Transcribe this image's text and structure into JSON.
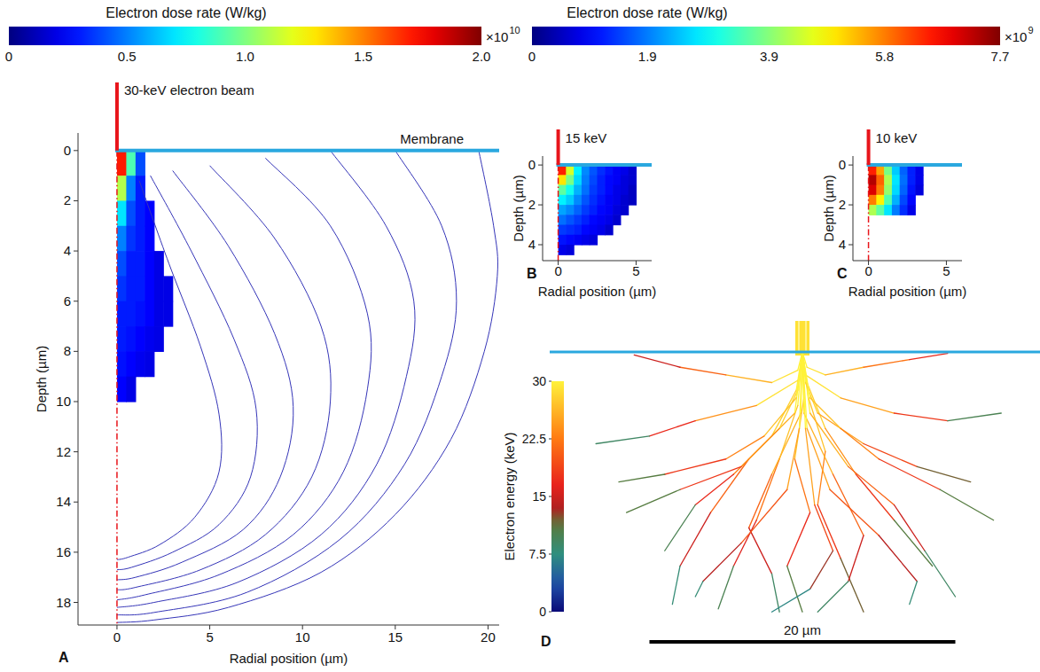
{
  "chart_data": [
    {
      "type": "heatmap",
      "panel_label": "A",
      "beam_label": "30-keV electron beam",
      "annotation": "Membrane",
      "x_label": "Radial position (µm)",
      "y_label": "Depth (µm)",
      "xlim": [
        -2.1,
        20.6
      ],
      "ylim": [
        18.9,
        -0.7
      ],
      "xticks": [
        0,
        5,
        10,
        15,
        20
      ],
      "yticks": [
        0,
        2,
        4,
        6,
        8,
        10,
        12,
        14,
        16,
        18
      ],
      "colorbar": {
        "label": "Electron dose rate (W/kg)",
        "range": [
          0,
          2
        ],
        "ticks": [
          0,
          0.5,
          {
            "value": 1,
            "label": "1.0"
          },
          1.5,
          {
            "value": 2,
            "label": "2.0"
          }
        ],
        "multiplier": {
          "base": "×10",
          "exponent": "10"
        }
      },
      "cells": {
        "x": [
          0.25,
          0.75,
          1.25,
          1.75,
          2.25,
          2.75
        ],
        "y": [
          0.5,
          1.5,
          2.5,
          3.5,
          4.5,
          5.5,
          6.5,
          7.5,
          8.5,
          9.5
        ],
        "values": [
          [
            1.7,
            0.9,
            0.4,
            null,
            null,
            null
          ],
          [
            1.1,
            0.5,
            0.3,
            null,
            null,
            null
          ],
          [
            0.7,
            0.4,
            0.3,
            0.25,
            null,
            null
          ],
          [
            0.5,
            0.35,
            0.3,
            0.25,
            null,
            null
          ],
          [
            0.4,
            0.3,
            0.3,
            0.25,
            0.2,
            null
          ],
          [
            0.35,
            0.3,
            0.3,
            0.25,
            0.2,
            0.2
          ],
          [
            0.3,
            0.3,
            0.28,
            0.25,
            0.2,
            0.2
          ],
          [
            0.3,
            0.28,
            0.25,
            0.22,
            0.2,
            null
          ],
          [
            0.28,
            0.25,
            0.22,
            0.2,
            null,
            null
          ],
          [
            0.25,
            0.2,
            null,
            null,
            null,
            null
          ]
        ]
      },
      "contours": [
        {
          "x": [
            19.5,
            20.3,
            20.5,
            19.8,
            18,
            15,
            11,
            6,
            2,
            0
          ],
          "y": [
            0,
            3,
            5,
            8,
            11.5,
            14.5,
            16.8,
            18.2,
            18.7,
            18.8
          ]
        },
        {
          "x": [
            15,
            17.5,
            18.3,
            17.5,
            15.5,
            12,
            7,
            2,
            0
          ],
          "y": [
            0,
            3,
            6,
            9,
            12.5,
            15.5,
            17.6,
            18.4,
            18.5
          ]
        },
        {
          "x": [
            11.5,
            14.5,
            16,
            15.6,
            14,
            11,
            6.5,
            2,
            0
          ],
          "y": [
            0,
            3,
            6,
            9,
            12.5,
            15.3,
            17.2,
            18,
            18.2
          ]
        },
        {
          "x": [
            8,
            11.5,
            13.5,
            13.5,
            12.2,
            9.5,
            5.5,
            1.5,
            0
          ],
          "y": [
            0.3,
            3,
            6.5,
            9.5,
            12.8,
            15.3,
            16.9,
            17.7,
            17.9
          ]
        },
        {
          "x": [
            5,
            8.5,
            11,
            11.5,
            10.5,
            8,
            4.5,
            1,
            0
          ],
          "y": [
            0.6,
            3.5,
            7,
            10,
            13,
            15.3,
            16.7,
            17.4,
            17.5
          ]
        },
        {
          "x": [
            3,
            6,
            8.5,
            9.5,
            8.8,
            6.8,
            3.5,
            1,
            0
          ],
          "y": [
            0.8,
            3.8,
            7.3,
            10.2,
            13,
            15.1,
            16.4,
            17,
            17.1
          ]
        },
        {
          "x": [
            1.8,
            4,
            6.3,
            7.5,
            7.2,
            5.5,
            3,
            0.8,
            0
          ],
          "y": [
            1,
            4,
            7.5,
            10.3,
            13,
            14.9,
            16,
            16.6,
            16.7
          ]
        },
        {
          "x": [
            1.2,
            2.8,
            4.5,
            5.5,
            5.5,
            4.2,
            2.3,
            0.6,
            0
          ],
          "y": [
            1.2,
            4.5,
            7.8,
            10.5,
            12.8,
            14.6,
            15.7,
            16.2,
            16.3
          ]
        }
      ]
    },
    {
      "type": "heatmap",
      "panel_label": "B",
      "beam_label": "15 keV",
      "x_label": "Radial position (µm)",
      "y_label": "Depth (µm)",
      "xlim": [
        -1,
        6
      ],
      "ylim": [
        4.8,
        -0.45
      ],
      "xticks": [
        0,
        5
      ],
      "yticks": [
        0,
        2,
        4
      ],
      "colorbar": {
        "label": "Electron dose rate (W/kg)",
        "range": [
          0,
          7.7
        ],
        "ticks": [
          0,
          1.9,
          3.9,
          5.8,
          7.7
        ],
        "multiplier": {
          "base": "×10",
          "exponent": "9"
        }
      },
      "cells": {
        "x": [
          0.25,
          0.75,
          1.25,
          1.75,
          2.25,
          2.75,
          3.25,
          3.75,
          4.25,
          4.75
        ],
        "y": [
          0.25,
          0.75,
          1.25,
          1.75,
          2.25,
          2.75,
          3.25,
          3.75,
          4.25
        ],
        "values": [
          [
            6.5,
            4.5,
            2.8,
            2.0,
            1.6,
            1.3,
            1.1,
            0.9,
            0.8,
            0.6
          ],
          [
            5.0,
            3.8,
            2.6,
            1.9,
            1.5,
            1.2,
            1.0,
            0.9,
            0.7,
            0.6
          ],
          [
            3.6,
            3.0,
            2.3,
            1.8,
            1.4,
            1.2,
            1.0,
            0.8,
            0.7,
            0.5
          ],
          [
            2.8,
            2.5,
            2.0,
            1.6,
            1.3,
            1.1,
            0.9,
            0.8,
            0.6,
            0.5
          ],
          [
            2.2,
            2.0,
            1.7,
            1.4,
            1.2,
            1.0,
            0.9,
            0.7,
            0.6,
            null
          ],
          [
            1.8,
            1.6,
            1.4,
            1.2,
            1.0,
            0.9,
            0.8,
            0.6,
            null,
            null
          ],
          [
            1.4,
            1.3,
            1.2,
            1.0,
            0.9,
            0.8,
            0.6,
            null,
            null,
            null
          ],
          [
            1.1,
            1.0,
            0.9,
            0.8,
            0.7,
            null,
            null,
            null,
            null,
            null
          ],
          [
            0.8,
            0.7,
            null,
            null,
            null,
            null,
            null,
            null,
            null,
            null
          ]
        ]
      }
    },
    {
      "type": "heatmap",
      "panel_label": "C",
      "beam_label": "10 keV",
      "x_label": "Radial position (µm)",
      "y_label": "Depth (µm)",
      "xlim": [
        -1,
        6
      ],
      "ylim": [
        4.8,
        -0.45
      ],
      "xticks": [
        0,
        5
      ],
      "yticks": [
        0,
        2,
        4
      ],
      "cells": {
        "x": [
          0.25,
          0.75,
          1.25,
          1.75,
          2.25,
          2.75,
          3.25
        ],
        "y": [
          0.25,
          0.75,
          1.25,
          1.75,
          2.25
        ],
        "values": [
          [
            6.5,
            5.5,
            3.8,
            2.5,
            1.7,
            1.2,
            0.8
          ],
          [
            7.3,
            6.0,
            4.2,
            2.7,
            1.8,
            1.2,
            0.8
          ],
          [
            7.0,
            5.8,
            4.0,
            2.6,
            1.7,
            1.1,
            0.7
          ],
          [
            5.8,
            4.9,
            3.5,
            2.3,
            1.5,
            1.0,
            null
          ],
          [
            4.2,
            3.6,
            2.7,
            1.9,
            1.3,
            0.8,
            null
          ]
        ]
      }
    },
    {
      "type": "trajectories",
      "panel_label": "D",
      "colorbar": {
        "label": "Electron energy (keV)",
        "range": [
          0,
          30
        ],
        "ticks": [
          0,
          7.5,
          15,
          22.5,
          30
        ]
      },
      "scale_bar": {
        "value": 20,
        "label": "20 µm"
      },
      "tracks": [
        {
          "x": [
            0,
            0.3,
            1.5,
            3.5,
            6,
            8.5
          ],
          "y": [
            0,
            2,
            5,
            8,
            11,
            14
          ],
          "energy": [
            30,
            28,
            24,
            18,
            11,
            4
          ]
        },
        {
          "x": [
            0,
            -0.4,
            -2,
            -4.5,
            -7,
            -9
          ],
          "y": [
            0,
            2.5,
            5.5,
            8,
            10,
            13
          ],
          "energy": [
            30,
            28,
            23,
            17,
            10,
            3
          ]
        },
        {
          "x": [
            0,
            0.2,
            2.5,
            6,
            9.5,
            13
          ],
          "y": [
            0,
            1.5,
            3,
            4,
            4.5,
            4
          ],
          "energy": [
            30,
            29,
            25,
            18,
            10,
            3
          ]
        },
        {
          "x": [
            0,
            -0.2,
            -3,
            -7,
            -10,
            -13.5
          ],
          "y": [
            0,
            1.8,
            3.5,
            4.5,
            5.5,
            6
          ],
          "energy": [
            30,
            29,
            24,
            17,
            9,
            2
          ]
        },
        {
          "x": [
            0,
            0.1,
            -0.5,
            0.5,
            -1,
            0
          ],
          "y": [
            0,
            3,
            7,
            10.5,
            14,
            17
          ],
          "energy": [
            30,
            27,
            22,
            17,
            11,
            4
          ]
        },
        {
          "x": [
            0,
            0.4,
            1.5,
            1,
            2.5,
            4
          ],
          "y": [
            0,
            3,
            6.5,
            10,
            13.5,
            17
          ],
          "energy": [
            30,
            27,
            23,
            18,
            12,
            5
          ]
        },
        {
          "x": [
            0,
            -0.3,
            -1.5,
            -3,
            -4.5,
            -5.5
          ],
          "y": [
            0,
            3.5,
            7,
            11,
            14,
            16.8
          ],
          "energy": [
            30,
            27,
            22,
            16,
            10,
            3
          ]
        },
        {
          "x": [
            0,
            0.5,
            3,
            6,
            8,
            10
          ],
          "y": [
            0,
            4,
            7.5,
            10,
            13,
            16
          ],
          "energy": [
            30,
            26,
            21,
            15,
            9,
            2
          ]
        },
        {
          "x": [
            0,
            -0.5,
            -3.5,
            -6,
            -8,
            -8.5
          ],
          "y": [
            0,
            4,
            7,
            10.5,
            14,
            16.5
          ],
          "energy": [
            30,
            26,
            21,
            15,
            8,
            2
          ]
        },
        {
          "x": [
            0,
            0.2,
            1,
            4,
            7.5,
            11
          ],
          "y": [
            0,
            2,
            4,
            6,
            7.5,
            8.5
          ],
          "energy": [
            30,
            28,
            25,
            19,
            12,
            4
          ]
        },
        {
          "x": [
            0,
            -0.3,
            -1.5,
            -4,
            -8,
            -11.5
          ],
          "y": [
            0,
            2.5,
            5,
            7.5,
            9,
            10.5
          ],
          "energy": [
            30,
            28,
            24,
            18,
            11,
            3
          ]
        },
        {
          "x": [
            0,
            0.1,
            2,
            4,
            3,
            1
          ],
          "y": [
            0,
            4,
            8,
            12,
            15,
            17
          ],
          "energy": [
            30,
            26,
            21,
            15,
            9,
            3
          ]
        },
        {
          "x": [
            0,
            -0.1,
            -2,
            -3.5,
            -2,
            -1.5
          ],
          "y": [
            0,
            4,
            8,
            11.5,
            14.5,
            17
          ],
          "energy": [
            30,
            26,
            21,
            15,
            9,
            3
          ]
        },
        {
          "x": [
            0,
            0.3,
            1.5,
            4,
            7,
            9.5
          ],
          "y": [
            0,
            1,
            1.5,
            1,
            0.5,
            0.1
          ],
          "energy": [
            30,
            29,
            26,
            22,
            17,
            12
          ]
        },
        {
          "x": [
            0,
            -0.3,
            -2,
            -5,
            -8,
            -11
          ],
          "y": [
            0,
            1.2,
            2,
            1.5,
            1,
            0.2
          ],
          "energy": [
            30,
            29,
            26,
            21,
            15,
            9
          ]
        },
        {
          "x": [
            0,
            0.5,
            2.5,
            5,
            9,
            12.5
          ],
          "y": [
            0,
            3,
            5,
            7,
            9,
            11
          ],
          "energy": [
            30,
            27,
            23,
            18,
            11,
            3
          ]
        },
        {
          "x": [
            0,
            -0.4,
            -2.5,
            -5,
            -9,
            -12
          ],
          "y": [
            0,
            3,
            5.5,
            7,
            8,
            8.5
          ],
          "energy": [
            30,
            27,
            23,
            18,
            11,
            4
          ]
        },
        {
          "x": [
            0,
            0.3,
            1.8,
            5,
            7.5,
            7
          ],
          "y": [
            0,
            5,
            9,
            12,
            15,
            16.5
          ],
          "energy": [
            30,
            25,
            20,
            14,
            8,
            2
          ]
        },
        {
          "x": [
            0,
            -0.2,
            -1,
            -4,
            -6.5,
            -7
          ],
          "y": [
            0,
            5,
            9,
            12.5,
            15,
            16
          ],
          "energy": [
            30,
            25,
            20,
            14,
            8,
            2
          ]
        },
        {
          "x": [
            0,
            0.2,
            0.8,
            2,
            0.5,
            -2
          ],
          "y": [
            0,
            5,
            10,
            13,
            15.5,
            17
          ],
          "energy": [
            30,
            25,
            19,
            13,
            7,
            1
          ]
        }
      ]
    }
  ]
}
